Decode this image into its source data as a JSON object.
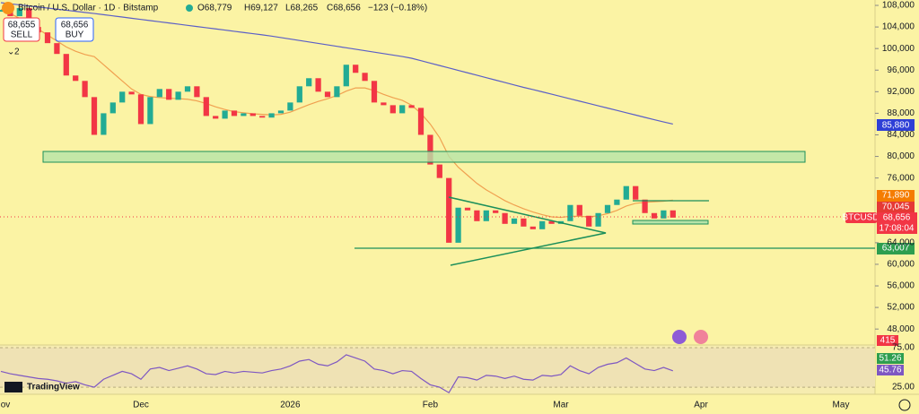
{
  "header": {
    "title": "Bitcoin / U.S. Dollar · 1D · Bitstamp",
    "open": "O68,779",
    "high": "H69,127",
    "low": "L68,265",
    "close": "C68,656",
    "change": "−123 (−0.18%)"
  },
  "trade": {
    "sell_price": "68,655",
    "sell": "SELL",
    "buy_price": "68,656",
    "buy": "BUY",
    "count": "2"
  },
  "price_tags": {
    "ma_slow": "85,880",
    "ma_fast": "71,890",
    "ma_mid": "70,045",
    "symbol": "BTCUSD",
    "last": "68,656",
    "countdown": "17:08:04",
    "level": "63,007",
    "volume": "415",
    "rsi_ma": "51.26",
    "rsi": "45.76"
  },
  "branding": "TradingView",
  "chart_data": {
    "type": "candlestick",
    "categories": [
      "ov",
      null,
      null,
      null,
      null,
      null,
      null,
      null,
      null,
      null,
      null,
      null,
      null,
      null,
      null,
      "Dec",
      null,
      null,
      null,
      null,
      null,
      null,
      null,
      null,
      null,
      null,
      null,
      null,
      null,
      null,
      null,
      "2026",
      null,
      null,
      null,
      null,
      null,
      null,
      null,
      null,
      null,
      null,
      null,
      null,
      null,
      null,
      "Feb",
      null,
      null,
      null,
      null,
      null,
      null,
      null,
      null,
      null,
      null,
      null,
      null,
      null,
      "Mar",
      null,
      null,
      null,
      null,
      null,
      null,
      null,
      null,
      null,
      null,
      null,
      null,
      null,
      null,
      "Apr",
      null,
      null,
      null,
      null,
      null,
      null,
      null,
      null,
      null,
      null,
      null,
      null,
      null,
      null,
      "May"
    ],
    "close": [
      107000,
      106000,
      107500,
      104000,
      103000,
      101000,
      99000,
      95000,
      94000,
      91000,
      84000,
      88000,
      90000,
      92000,
      91500,
      86000,
      91000,
      92500,
      90500,
      92000,
      93000,
      91000,
      87500,
      87000,
      88500,
      87500,
      88000,
      87500,
      87200,
      88000,
      88500,
      90000,
      93000,
      94500,
      92000,
      91000,
      93000,
      97000,
      95500,
      94000,
      90000,
      89500,
      88000,
      89500,
      89000,
      84000,
      78500,
      76000,
      64000,
      70500,
      70000,
      68000,
      70000,
      69500,
      67500,
      68500,
      67000,
      66500,
      68000,
      67500,
      68000,
      71000,
      69000,
      67000,
      69500,
      71000,
      72000,
      74500,
      72000,
      69500,
      68500,
      70000,
      68656,
      null,
      null,
      null,
      null,
      null,
      null,
      null,
      null,
      null,
      null,
      null,
      null,
      null,
      null,
      null,
      null,
      null,
      null
    ],
    "up_color": "#22ab94",
    "down_color": "#f23645",
    "lines": [
      {
        "color": "#5b5fc7",
        "values": [
          108500,
          108300,
          108100,
          107900,
          107700,
          107500,
          107300,
          107100,
          106900,
          106700,
          106500,
          106280,
          106060,
          105840,
          105620,
          105400,
          105180,
          104960,
          104740,
          104520,
          104300,
          104080,
          103860,
          103640,
          103420,
          103200,
          102980,
          102760,
          102540,
          102300,
          102030,
          101760,
          101490,
          101220,
          100950,
          100680,
          100410,
          100140,
          99870,
          99600,
          99330,
          99060,
          98790,
          98520,
          98200,
          97750,
          97300,
          96850,
          96400,
          95950,
          95500,
          95050,
          94600,
          94150,
          93700,
          93250,
          92800,
          92400,
          91970,
          91540,
          91110,
          90680,
          90250,
          89820,
          89390,
          88960,
          88530,
          88100,
          87670,
          87240,
          86810,
          86400,
          86000,
          null,
          null,
          null,
          null,
          null,
          null,
          null,
          null,
          null,
          null,
          null,
          null,
          null,
          null,
          null,
          null,
          null,
          null
        ]
      },
      {
        "color": "#f0a050",
        "values": [
          107300,
          106500,
          105600,
          104700,
          103600,
          102500,
          101400,
          100300,
          99500,
          98900,
          98500,
          97000,
          95500,
          94000,
          92500,
          91500,
          91100,
          90900,
          90800,
          90700,
          90600,
          90300,
          89800,
          89200,
          88700,
          88300,
          88100,
          87900,
          87800,
          87700,
          87800,
          88200,
          88900,
          89600,
          90200,
          90700,
          91300,
          92100,
          92700,
          92700,
          92200,
          91500,
          90900,
          90400,
          89500,
          88000,
          86000,
          83500,
          80000,
          78000,
          76500,
          75000,
          73800,
          72800,
          71800,
          71000,
          70300,
          69700,
          69200,
          68800,
          68700,
          68900,
          68900,
          68800,
          69000,
          69400,
          70000,
          70800,
          71300,
          71500,
          71600,
          71700,
          71890,
          null,
          null,
          null,
          null,
          null,
          null,
          null,
          null,
          null,
          null,
          null,
          null,
          null,
          null,
          null,
          null,
          null,
          null
        ]
      }
    ],
    "ylim": [
      45040,
      109000
    ],
    "yticks": [
      {
        "value": 108000,
        "label": "108,000"
      },
      {
        "value": 104000,
        "label": "104,000"
      },
      {
        "value": 100000,
        "label": "100,000"
      },
      {
        "value": 96000,
        "label": "96,000"
      },
      {
        "value": 92000,
        "label": "92,000"
      },
      {
        "value": 88000,
        "label": "88,000"
      },
      {
        "value": 84000,
        "label": "84,000"
      },
      {
        "value": 80000,
        "label": "80,000"
      },
      {
        "value": 76000,
        "label": "76,000"
      },
      {
        "value": 64000,
        "label": "64,000"
      },
      {
        "value": 60000,
        "label": "60,000"
      },
      {
        "value": 56000,
        "label": "56,000"
      },
      {
        "value": 52000,
        "label": "52,000"
      },
      {
        "value": 48000,
        "label": "48,000"
      }
    ],
    "rsi": {
      "color": "#7e57c2",
      "values": [
        45,
        42,
        40,
        38,
        36,
        35,
        33,
        30,
        32,
        28,
        25,
        35,
        40,
        45,
        42,
        35,
        48,
        50,
        46,
        49,
        52,
        48,
        42,
        41,
        45,
        43,
        45,
        44,
        43,
        46,
        48,
        52,
        58,
        60,
        54,
        52,
        57,
        66,
        62,
        58,
        48,
        46,
        42,
        46,
        45,
        36,
        28,
        25,
        18,
        38,
        37,
        34,
        40,
        39,
        36,
        39,
        35,
        34,
        40,
        39,
        41,
        52,
        46,
        42,
        50,
        54,
        56,
        62,
        55,
        48,
        46,
        50,
        45.76,
        null,
        null,
        null,
        null,
        null,
        null,
        null,
        null,
        null,
        null,
        null,
        null,
        null,
        null,
        null,
        null,
        null,
        null
      ],
      "ylim": [
        16,
        78.4
      ],
      "yticks": [
        {
          "value": 75,
          "label": "75.00"
        },
        {
          "value": 25,
          "label": "25.00"
        }
      ]
    }
  }
}
